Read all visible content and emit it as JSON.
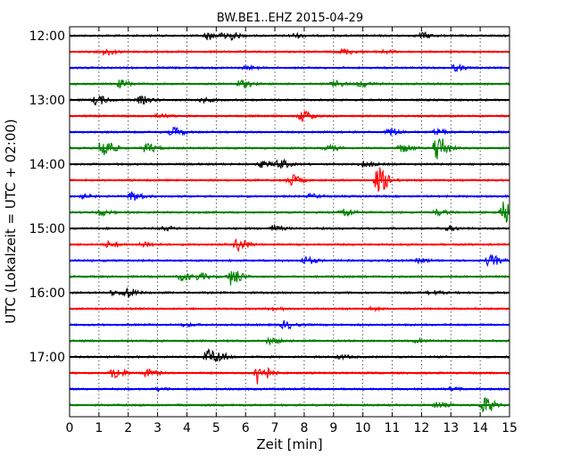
{
  "chart_data": {
    "type": "line",
    "title": "BW.BE1..EHZ 2015-04-29",
    "xlabel": "Zeit  [min]",
    "ylabel": "UTC (Lokalzeit = UTC + 02:00)",
    "xlim": [
      0,
      15
    ],
    "x_ticks": [
      "0",
      "1",
      "2",
      "3",
      "4",
      "5",
      "6",
      "7",
      "8",
      "9",
      "10",
      "11",
      "12",
      "13",
      "14",
      "15"
    ],
    "y_ticks": [
      "12:00",
      "13:00",
      "14:00",
      "15:00",
      "16:00",
      "17:00"
    ],
    "grid": "vertical dotted",
    "trace_colors": [
      "#000000",
      "#ff0000",
      "#0000ff",
      "#008000"
    ],
    "traces": [
      {
        "start": "12:00",
        "events": [
          [
            4.7,
            4
          ],
          [
            5.3,
            6
          ],
          [
            12.0,
            3
          ],
          [
            7.6,
            2
          ]
        ]
      },
      {
        "start": "12:15",
        "events": [
          [
            1.2,
            3
          ],
          [
            9.3,
            3
          ],
          [
            10.6,
            2
          ]
        ]
      },
      {
        "start": "12:30",
        "events": [
          [
            13.1,
            3
          ],
          [
            6.0,
            1.5
          ]
        ]
      },
      {
        "start": "12:45",
        "events": [
          [
            1.7,
            4
          ],
          [
            5.8,
            4
          ],
          [
            9.0,
            3
          ],
          [
            9.9,
            3
          ]
        ]
      },
      {
        "start": "13:00",
        "events": [
          [
            0.9,
            5
          ],
          [
            2.4,
            4
          ],
          [
            4.5,
            2
          ]
        ]
      },
      {
        "start": "13:15",
        "events": [
          [
            7.9,
            6
          ],
          [
            3.0,
            2
          ]
        ]
      },
      {
        "start": "13:30",
        "events": [
          [
            3.5,
            5
          ],
          [
            10.9,
            4
          ],
          [
            12.5,
            3
          ]
        ]
      },
      {
        "start": "13:45",
        "events": [
          [
            1.1,
            12
          ],
          [
            2.6,
            5
          ],
          [
            8.8,
            3
          ],
          [
            11.3,
            4
          ],
          [
            12.5,
            16
          ]
        ]
      },
      {
        "start": "14:00",
        "events": [
          [
            6.5,
            3
          ],
          [
            7.1,
            5
          ],
          [
            10.0,
            3
          ]
        ]
      },
      {
        "start": "14:15",
        "events": [
          [
            7.5,
            6
          ],
          [
            10.5,
            14
          ]
        ]
      },
      {
        "start": "14:30",
        "events": [
          [
            2.1,
            5
          ],
          [
            0.4,
            2
          ],
          [
            8.2,
            2
          ]
        ]
      },
      {
        "start": "14:45",
        "events": [
          [
            1.0,
            3
          ],
          [
            9.3,
            5
          ],
          [
            12.5,
            3
          ],
          [
            14.8,
            12
          ]
        ]
      },
      {
        "start": "15:00",
        "events": [
          [
            3.2,
            2
          ],
          [
            6.9,
            3
          ],
          [
            12.9,
            2
          ]
        ]
      },
      {
        "start": "15:15",
        "events": [
          [
            1.3,
            3
          ],
          [
            2.5,
            3
          ],
          [
            5.7,
            7
          ]
        ]
      },
      {
        "start": "15:30",
        "events": [
          [
            8.0,
            4
          ],
          [
            11.9,
            2
          ],
          [
            14.3,
            6
          ]
        ]
      },
      {
        "start": "15:45",
        "events": [
          [
            3.8,
            4
          ],
          [
            4.4,
            3
          ],
          [
            5.5,
            9
          ]
        ]
      },
      {
        "start": "16:00",
        "events": [
          [
            1.9,
            5
          ],
          [
            1.4,
            2
          ],
          [
            12.3,
            2
          ]
        ]
      },
      {
        "start": "16:15",
        "events": [
          [
            6.9,
            2
          ],
          [
            10.2,
            1.5
          ]
        ]
      },
      {
        "start": "16:30",
        "events": [
          [
            7.3,
            4
          ],
          [
            3.9,
            1.5
          ]
        ]
      },
      {
        "start": "16:45",
        "events": [
          [
            6.8,
            3
          ],
          [
            11.8,
            2
          ]
        ]
      },
      {
        "start": "17:00",
        "events": [
          [
            4.7,
            8
          ],
          [
            5.1,
            3
          ],
          [
            9.2,
            2
          ]
        ]
      },
      {
        "start": "17:15",
        "events": [
          [
            1.5,
            6
          ],
          [
            2.6,
            4
          ],
          [
            6.4,
            13
          ]
        ]
      },
      {
        "start": "17:30",
        "events": [
          [
            3.0,
            1.5
          ],
          [
            13.0,
            1.5
          ]
        ]
      },
      {
        "start": "17:45",
        "events": [
          [
            12.5,
            3
          ],
          [
            14.1,
            9
          ]
        ]
      }
    ]
  }
}
